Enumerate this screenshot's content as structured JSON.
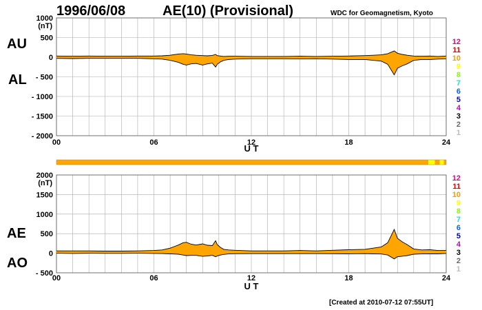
{
  "header": {
    "date": "1996/06/08",
    "title": "AE(10) (Provisional)",
    "source": "WDC for Geomagnetism, Kyoto",
    "created": "[Created at 2010-07-12 07:55UT]"
  },
  "colors": {
    "fill": "#ffa500",
    "line": "#000000",
    "grid": "#aaaaaa",
    "bar_main": "#ffa500",
    "bar_alt": "#ffff00"
  },
  "station_legend": [
    {
      "label": "12",
      "color": "#e8007a"
    },
    {
      "label": "11",
      "color": "#e80000"
    },
    {
      "label": "10",
      "color": "#ff9900"
    },
    {
      "label": "9",
      "color": "#ffff00"
    },
    {
      "label": "8",
      "color": "#88ff00"
    },
    {
      "label": "7",
      "color": "#00e8e8"
    },
    {
      "label": "6",
      "color": "#0066ff"
    },
    {
      "label": "5",
      "color": "#0000cc"
    },
    {
      "label": "4",
      "color": "#cc00cc"
    },
    {
      "label": "3",
      "color": "#000000"
    },
    {
      "label": "2",
      "color": "#666666"
    },
    {
      "label": "1",
      "color": "#bbbbbb"
    }
  ],
  "chart_data": [
    {
      "type": "area",
      "panel": "AU/AL",
      "label_top": "AU",
      "label_bottom": "AL",
      "unit": "(nT)",
      "xlabel": "U T",
      "x_ticks": [
        "00",
        "06",
        "12",
        "18",
        "24"
      ],
      "xlim": [
        0,
        24
      ],
      "ylim": [
        -2000,
        1000
      ],
      "y_ticks": [
        "1000",
        "500",
        "0",
        "- 500",
        "- 1000",
        "- 1500",
        "- 2000"
      ],
      "grid": true,
      "series": [
        {
          "x": [
            0,
            1,
            2,
            3,
            4,
            5,
            6,
            6.5,
            7,
            7.5,
            7.8,
            8,
            8.3,
            8.6,
            9,
            9.3,
            9.6,
            9.8,
            9.9,
            10.1,
            10.3,
            10.6,
            11,
            12,
            13,
            14,
            15,
            16,
            17,
            18,
            19,
            19.5,
            20,
            20.4,
            20.8,
            21,
            21.3,
            21.6,
            22,
            22.5,
            23,
            23.5,
            24
          ],
          "values": [
            30,
            25,
            30,
            25,
            25,
            30,
            30,
            35,
            50,
            80,
            90,
            80,
            60,
            50,
            40,
            35,
            45,
            70,
            40,
            30,
            20,
            25,
            25,
            20,
            20,
            20,
            25,
            20,
            25,
            30,
            40,
            50,
            60,
            90,
            160,
            100,
            70,
            50,
            30,
            25,
            30,
            20,
            30
          ]
        },
        {
          "x": [
            0,
            1,
            2,
            3,
            4,
            5,
            6,
            6.5,
            7,
            7.5,
            7.8,
            8,
            8.3,
            8.6,
            9,
            9.3,
            9.6,
            9.8,
            9.9,
            10.1,
            10.3,
            10.6,
            11,
            12,
            13,
            14,
            15,
            16,
            17,
            18,
            19,
            19.5,
            20,
            20.4,
            20.8,
            21,
            21.3,
            21.6,
            22,
            22.5,
            23,
            23.5,
            24
          ],
          "values": [
            -30,
            -35,
            -30,
            -30,
            -30,
            -30,
            -40,
            -50,
            -80,
            -130,
            -180,
            -200,
            -170,
            -160,
            -200,
            -170,
            -150,
            -250,
            -180,
            -120,
            -80,
            -60,
            -50,
            -40,
            -40,
            -40,
            -45,
            -40,
            -50,
            -60,
            -60,
            -80,
            -100,
            -180,
            -450,
            -280,
            -220,
            -170,
            -80,
            -60,
            -60,
            -50,
            -40
          ]
        }
      ]
    },
    {
      "type": "area",
      "panel": "AE/AO",
      "label_top": "AE",
      "label_bottom": "AO",
      "unit": "(nT)",
      "xlabel": "U T",
      "x_ticks": [
        "00",
        "06",
        "12",
        "18",
        "24"
      ],
      "xlim": [
        0,
        24
      ],
      "ylim": [
        -500,
        2000
      ],
      "y_ticks": [
        "2000",
        "1500",
        "1000",
        "500",
        "0",
        "- 500"
      ],
      "grid": true,
      "series": [
        {
          "x": [
            0,
            1,
            2,
            3,
            4,
            5,
            6,
            6.5,
            7,
            7.5,
            7.8,
            8,
            8.3,
            8.6,
            9,
            9.3,
            9.6,
            9.8,
            9.9,
            10.1,
            10.3,
            10.6,
            11,
            12,
            13,
            14,
            15,
            16,
            17,
            18,
            19,
            19.5,
            20,
            20.4,
            20.8,
            21,
            21.3,
            21.6,
            22,
            22.5,
            23,
            23.5,
            24
          ],
          "values": [
            60,
            60,
            60,
            55,
            55,
            60,
            70,
            85,
            130,
            210,
            270,
            280,
            230,
            210,
            240,
            205,
            195,
            320,
            220,
            150,
            100,
            85,
            75,
            60,
            60,
            60,
            70,
            60,
            75,
            90,
            100,
            130,
            160,
            270,
            610,
            380,
            290,
            220,
            110,
            85,
            90,
            70,
            70
          ]
        },
        {
          "x": [
            0,
            1,
            2,
            3,
            4,
            5,
            6,
            6.5,
            7,
            7.5,
            7.8,
            8,
            8.3,
            8.6,
            9,
            9.3,
            9.6,
            9.8,
            9.9,
            10.1,
            10.3,
            10.6,
            11,
            12,
            13,
            14,
            15,
            16,
            17,
            18,
            19,
            19.5,
            20,
            20.4,
            20.8,
            21,
            21.3,
            21.6,
            22,
            22.5,
            23,
            23.5,
            24
          ],
          "values": [
            0,
            -5,
            0,
            -3,
            -3,
            0,
            -5,
            -8,
            -15,
            -25,
            -45,
            -60,
            -55,
            -55,
            -80,
            -68,
            -52,
            -90,
            -70,
            -45,
            -30,
            -18,
            -12,
            -10,
            -10,
            -10,
            -10,
            -10,
            -12,
            -15,
            -10,
            -15,
            -20,
            -45,
            -145,
            -90,
            -75,
            -60,
            -25,
            -18,
            -15,
            -15,
            -5
          ]
        }
      ]
    }
  ],
  "station_bar": {
    "main_color_label": "10",
    "segments": [
      {
        "from": 0,
        "to": 22.9,
        "color": "#ffa500"
      },
      {
        "from": 22.9,
        "to": 23.3,
        "color": "#ffff00"
      },
      {
        "from": 23.3,
        "to": 23.6,
        "color": "#ffa500"
      },
      {
        "from": 23.6,
        "to": 23.85,
        "color": "#ffff00"
      },
      {
        "from": 23.85,
        "to": 24,
        "color": "#ffa500"
      }
    ]
  }
}
